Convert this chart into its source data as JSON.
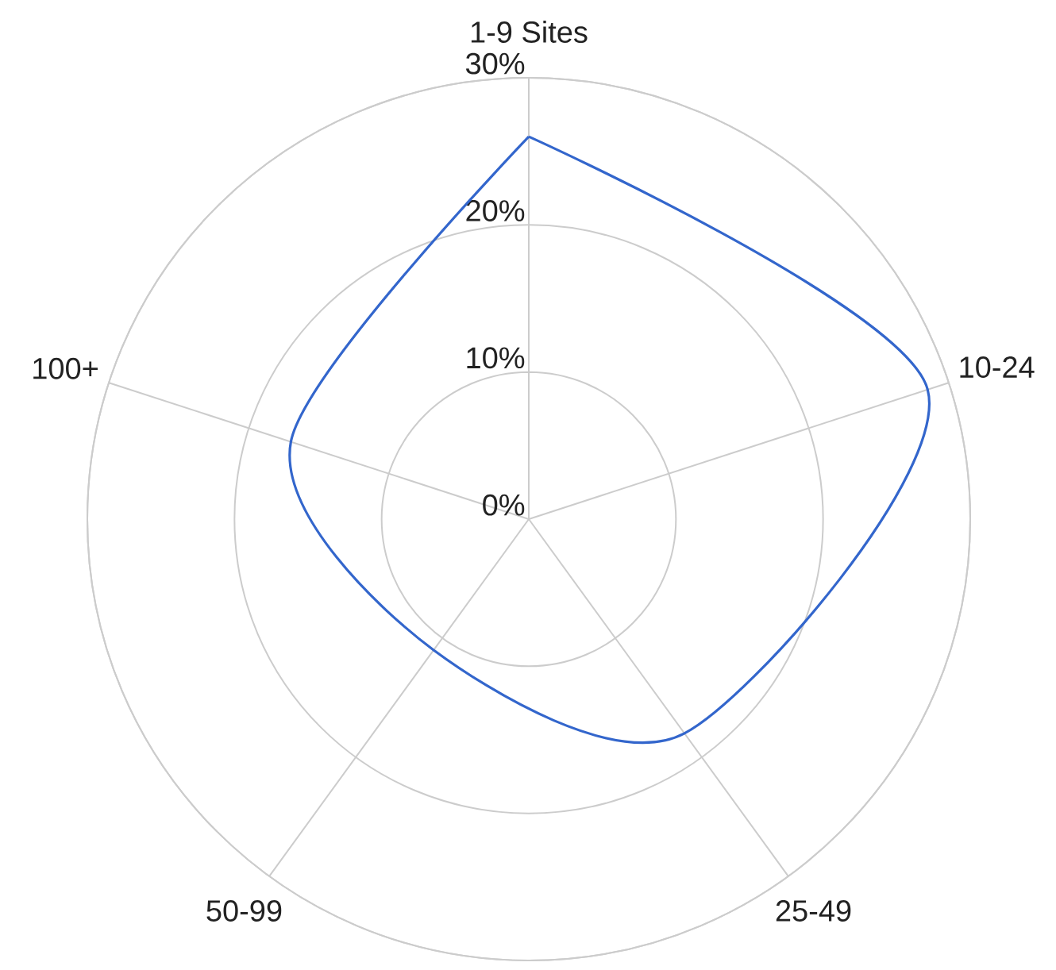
{
  "chart_data": {
    "type": "radar",
    "categories": [
      "1-9 Sites",
      "10-24",
      "25-49",
      "50-99",
      "100+"
    ],
    "series": [
      {
        "color": "#3366cc",
        "values": [
          26,
          28.5,
          18,
          11,
          17
        ]
      }
    ],
    "ylim": [
      0,
      30
    ],
    "yticks": [
      {
        "value": 0,
        "label": "0%"
      },
      {
        "value": 10,
        "label": "10%"
      },
      {
        "value": 20,
        "label": "20%"
      },
      {
        "value": 30,
        "label": "30%"
      }
    ],
    "grid": true,
    "line_style": "solid"
  }
}
